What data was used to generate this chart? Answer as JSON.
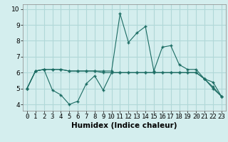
{
  "xlabel": "Humidex (Indice chaleur)",
  "background_color": "#d4eeee",
  "grid_color": "#b0d8d8",
  "line_color": "#1a6b62",
  "x_ticks": [
    0,
    1,
    2,
    3,
    4,
    5,
    6,
    7,
    8,
    9,
    10,
    11,
    12,
    13,
    14,
    15,
    16,
    17,
    18,
    19,
    20,
    21,
    22,
    23
  ],
  "ylim": [
    3.6,
    10.3
  ],
  "xlim": [
    -0.5,
    23.5
  ],
  "series1_x": [
    0,
    1,
    2,
    3,
    4,
    5,
    6,
    7,
    8,
    9,
    10,
    11,
    12,
    13,
    14,
    15,
    16,
    17,
    18,
    19,
    20,
    21,
    22,
    23
  ],
  "series1_y": [
    5.0,
    6.1,
    6.2,
    6.2,
    6.2,
    6.1,
    6.1,
    6.1,
    6.1,
    6.1,
    6.1,
    9.7,
    7.9,
    8.5,
    8.9,
    6.1,
    7.6,
    7.7,
    6.5,
    6.2,
    6.2,
    5.6,
    5.1,
    4.5
  ],
  "series2_x": [
    0,
    1,
    2,
    3,
    4,
    5,
    6,
    7,
    8,
    9,
    10,
    11,
    12,
    13,
    14,
    15,
    16,
    17,
    18,
    19,
    20,
    21,
    22,
    23
  ],
  "series2_y": [
    5.0,
    6.1,
    6.2,
    6.2,
    6.2,
    6.1,
    6.1,
    6.1,
    6.1,
    6.0,
    6.0,
    6.0,
    6.0,
    6.0,
    6.0,
    6.0,
    6.0,
    6.0,
    6.0,
    6.0,
    6.0,
    5.6,
    5.4,
    4.5
  ],
  "series3_x": [
    0,
    1,
    2,
    3,
    4,
    5,
    6,
    7,
    8,
    9,
    10,
    11,
    12,
    13,
    14,
    15,
    16,
    17,
    18,
    19,
    20,
    21,
    22,
    23
  ],
  "series3_y": [
    5.0,
    6.1,
    6.2,
    4.9,
    4.6,
    4.0,
    4.2,
    5.3,
    5.8,
    4.9,
    6.0,
    6.0,
    6.0,
    6.0,
    6.0,
    6.0,
    6.0,
    6.0,
    6.0,
    6.0,
    6.0,
    5.6,
    5.0,
    4.5
  ],
  "tick_fontsize": 6.5,
  "label_fontsize": 7.5
}
